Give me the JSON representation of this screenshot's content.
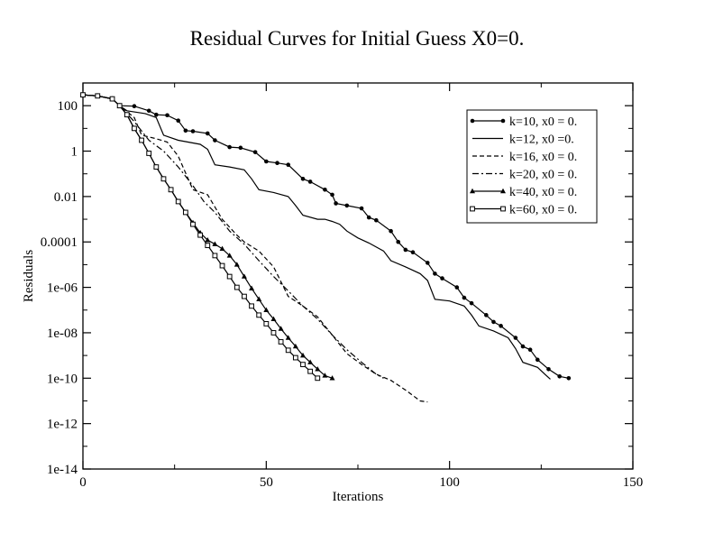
{
  "chart_data": {
    "type": "line",
    "title": "Residual Curves for Initial Guess X0=0.",
    "xlabel": "Iterations",
    "ylabel": "Residuals",
    "xlim": [
      0,
      150
    ],
    "ylim": [
      1e-14,
      1000
    ],
    "yscale": "log",
    "x_ticks": [
      0,
      50,
      100,
      150
    ],
    "x_tick_labels": [
      "0",
      "50",
      "100",
      "150"
    ],
    "y_ticks": [
      100,
      1,
      0.01,
      0.0001,
      1e-06,
      1e-08,
      1e-10,
      1e-12,
      1e-14
    ],
    "y_tick_labels": [
      "100",
      "1",
      "0.01",
      "0.0001",
      "1e-06",
      "1e-08",
      "1e-10",
      "1e-12",
      "1e-14"
    ],
    "grid": false,
    "legend_position": "top-right",
    "series": [
      {
        "name": "k=10, x0 = 0.",
        "line_style": "solid",
        "marker": "circle",
        "points": [
          [
            0,
            300
          ],
          [
            4,
            270
          ],
          [
            8,
            200
          ],
          [
            10,
            100
          ],
          [
            14,
            95
          ],
          [
            18,
            60
          ],
          [
            20,
            40
          ],
          [
            23,
            38
          ],
          [
            26,
            22
          ],
          [
            28,
            8
          ],
          [
            30,
            7.5
          ],
          [
            34,
            6
          ],
          [
            36,
            3
          ],
          [
            40,
            1.5
          ],
          [
            43,
            1.4
          ],
          [
            47,
            0.9
          ],
          [
            50,
            0.35
          ],
          [
            53,
            0.3
          ],
          [
            56,
            0.25
          ],
          [
            60,
            0.06
          ],
          [
            62,
            0.045
          ],
          [
            66,
            0.02
          ],
          [
            68,
            0.012
          ],
          [
            69,
            0.005
          ],
          [
            72,
            0.004
          ],
          [
            76,
            0.003
          ],
          [
            78,
            0.0012
          ],
          [
            80,
            0.0009
          ],
          [
            84,
            0.0003
          ],
          [
            86,
            0.0001
          ],
          [
            88,
            4.5e-05
          ],
          [
            90,
            3.5e-05
          ],
          [
            94,
            1.2e-05
          ],
          [
            96,
            4e-06
          ],
          [
            98,
            2.5e-06
          ],
          [
            102,
            1e-06
          ],
          [
            104,
            3.5e-07
          ],
          [
            106,
            2e-07
          ],
          [
            110,
            6e-08
          ],
          [
            112,
            3e-08
          ],
          [
            114,
            2e-08
          ],
          [
            118,
            6e-09
          ],
          [
            120,
            2.5e-09
          ],
          [
            122,
            1.8e-09
          ],
          [
            124,
            6.5e-10
          ],
          [
            127,
            2.5e-10
          ],
          [
            130,
            1.2e-10
          ],
          [
            132.5,
            1e-10
          ]
        ]
      },
      {
        "name": "k=12, x0 =0.",
        "line_style": "solid",
        "marker": "none",
        "points": [
          [
            0,
            300
          ],
          [
            4,
            270
          ],
          [
            8,
            200
          ],
          [
            10,
            100
          ],
          [
            12,
            60
          ],
          [
            17,
            45
          ],
          [
            20,
            30
          ],
          [
            22,
            5
          ],
          [
            26,
            3
          ],
          [
            32,
            2
          ],
          [
            34,
            1.2
          ],
          [
            36,
            0.25
          ],
          [
            40,
            0.2
          ],
          [
            44,
            0.15
          ],
          [
            46,
            0.06
          ],
          [
            48,
            0.02
          ],
          [
            52,
            0.015
          ],
          [
            56,
            0.01
          ],
          [
            58,
            0.004
          ],
          [
            60,
            0.0015
          ],
          [
            64,
            0.001
          ],
          [
            66,
            0.001
          ],
          [
            68,
            0.0008
          ],
          [
            70,
            0.0006
          ],
          [
            72,
            0.0003
          ],
          [
            75,
            0.00015
          ],
          [
            78,
            9e-05
          ],
          [
            82,
            4e-05
          ],
          [
            84,
            1.5e-05
          ],
          [
            88,
            8e-06
          ],
          [
            92,
            4e-06
          ],
          [
            94,
            2e-06
          ],
          [
            96,
            3e-07
          ],
          [
            100,
            2.5e-07
          ],
          [
            104,
            1.5e-07
          ],
          [
            106,
            6e-08
          ],
          [
            108,
            2e-08
          ],
          [
            112,
            1.2e-08
          ],
          [
            116,
            6e-09
          ],
          [
            118,
            2e-09
          ],
          [
            120,
            5e-10
          ],
          [
            124,
            3e-10
          ],
          [
            126,
            1.5e-10
          ],
          [
            127.5,
            9e-11
          ]
        ]
      },
      {
        "name": "k=16, x0 = 0.",
        "line_style": "dashed",
        "marker": "none",
        "points": [
          [
            0,
            300
          ],
          [
            4,
            270
          ],
          [
            8,
            200
          ],
          [
            10,
            100
          ],
          [
            14,
            30
          ],
          [
            16,
            5
          ],
          [
            20,
            3.5
          ],
          [
            23,
            2.5
          ],
          [
            26,
            0.6
          ],
          [
            30,
            0.02
          ],
          [
            34,
            0.012
          ],
          [
            38,
            0.001
          ],
          [
            42,
            0.0002
          ],
          [
            44,
            0.0001
          ],
          [
            48,
            4e-05
          ],
          [
            52,
            8e-06
          ],
          [
            56,
            4e-07
          ],
          [
            60,
            1.5e-07
          ],
          [
            64,
            5e-08
          ],
          [
            68,
            8e-09
          ],
          [
            72,
            1.2e-09
          ],
          [
            76,
            4e-10
          ],
          [
            80,
            1.5e-10
          ],
          [
            84,
            8e-11
          ],
          [
            88,
            3e-11
          ],
          [
            92,
            1e-11
          ],
          [
            94,
            9e-12
          ]
        ]
      },
      {
        "name": "k=20, x0 = 0.",
        "line_style": "dashdot",
        "marker": "none",
        "points": [
          [
            0,
            300
          ],
          [
            4,
            270
          ],
          [
            8,
            200
          ],
          [
            10,
            100
          ],
          [
            14,
            20
          ],
          [
            18,
            3
          ],
          [
            22,
            1
          ],
          [
            26,
            0.2
          ],
          [
            30,
            0.03
          ],
          [
            33,
            0.006
          ],
          [
            36,
            0.002
          ],
          [
            40,
            0.0003
          ],
          [
            44,
            8e-05
          ],
          [
            48,
            1.5e-05
          ],
          [
            52,
            3e-06
          ],
          [
            56,
            7e-07
          ],
          [
            60,
            1.5e-07
          ],
          [
            64,
            4e-08
          ],
          [
            68,
            8e-09
          ],
          [
            72,
            1.8e-09
          ],
          [
            76,
            5e-10
          ],
          [
            80,
            1.5e-10
          ],
          [
            82,
            1e-10
          ]
        ]
      },
      {
        "name": "k=40, x0 = 0.",
        "line_style": "solid",
        "marker": "triangle",
        "points": [
          [
            0,
            300
          ],
          [
            4,
            270
          ],
          [
            8,
            200
          ],
          [
            10,
            100
          ],
          [
            12,
            40
          ],
          [
            14,
            10
          ],
          [
            16,
            3
          ],
          [
            18,
            0.8
          ],
          [
            20,
            0.2
          ],
          [
            22,
            0.06
          ],
          [
            24,
            0.02
          ],
          [
            26,
            0.006
          ],
          [
            28,
            0.002
          ],
          [
            30,
            0.0007
          ],
          [
            32,
            0.00025
          ],
          [
            34,
            0.00012
          ],
          [
            36,
            8e-05
          ],
          [
            38,
            5e-05
          ],
          [
            40,
            2.5e-05
          ],
          [
            42,
            1e-05
          ],
          [
            44,
            3e-06
          ],
          [
            46,
            9e-07
          ],
          [
            48,
            3e-07
          ],
          [
            50,
            1e-07
          ],
          [
            52,
            4e-08
          ],
          [
            54,
            1.5e-08
          ],
          [
            56,
            6e-09
          ],
          [
            58,
            2.5e-09
          ],
          [
            60,
            1e-09
          ],
          [
            62,
            5e-10
          ],
          [
            64,
            2.5e-10
          ],
          [
            66,
            1.3e-10
          ],
          [
            68,
            1e-10
          ]
        ]
      },
      {
        "name": "k=60, x0 = 0.",
        "line_style": "solid",
        "marker": "square",
        "points": [
          [
            0,
            300
          ],
          [
            4,
            270
          ],
          [
            8,
            200
          ],
          [
            10,
            100
          ],
          [
            12,
            40
          ],
          [
            14,
            10
          ],
          [
            16,
            3
          ],
          [
            18,
            0.8
          ],
          [
            20,
            0.2
          ],
          [
            22,
            0.06
          ],
          [
            24,
            0.02
          ],
          [
            26,
            0.006
          ],
          [
            28,
            0.002
          ],
          [
            30,
            0.0006
          ],
          [
            32,
            0.0002
          ],
          [
            34,
            7e-05
          ],
          [
            36,
            2.5e-05
          ],
          [
            38,
            9e-06
          ],
          [
            40,
            3e-06
          ],
          [
            42,
            1e-06
          ],
          [
            44,
            4e-07
          ],
          [
            46,
            1.5e-07
          ],
          [
            48,
            6e-08
          ],
          [
            50,
            2.5e-08
          ],
          [
            52,
            1e-08
          ],
          [
            54,
            4e-09
          ],
          [
            56,
            1.7e-09
          ],
          [
            58,
            8e-10
          ],
          [
            60,
            4e-10
          ],
          [
            62,
            2e-10
          ],
          [
            64,
            1e-10
          ]
        ]
      }
    ]
  }
}
